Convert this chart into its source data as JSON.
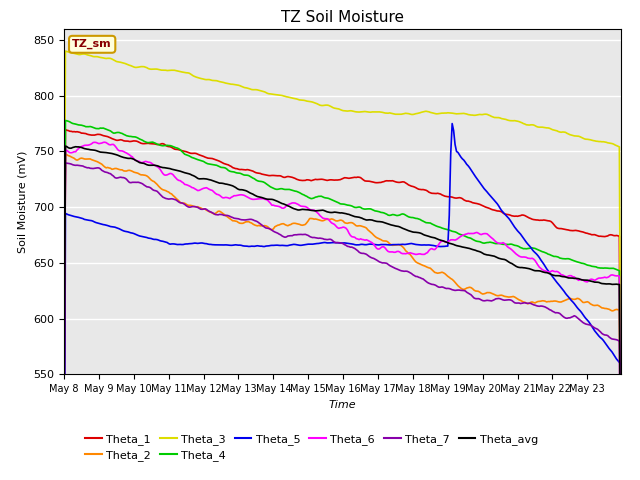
{
  "title": "TZ Soil Moisture",
  "xlabel": "Time",
  "ylabel": "Soil Moisture (mV)",
  "ylim": [
    550,
    860
  ],
  "background_color": "#e8e8e8",
  "legend_box_color": "#ffffdd",
  "legend_box_edge": "#cc9900",
  "legend_label_color": "#880000",
  "legend_label": "TZ_sm",
  "tick_labels": [
    "May 8",
    "May 9",
    "May 10",
    "May 11",
    "May 12",
    "May 13",
    "May 14",
    "May 15",
    "May 16",
    "May 17",
    "May 18",
    "May 19",
    "May 20",
    "May 21",
    "May 22",
    "May 23"
  ],
  "series_order": [
    "Theta_1",
    "Theta_2",
    "Theta_3",
    "Theta_4",
    "Theta_5",
    "Theta_6",
    "Theta_7",
    "Theta_avg"
  ],
  "legend_row1": [
    "Theta_1",
    "Theta_2",
    "Theta_3",
    "Theta_4",
    "Theta_5",
    "Theta_6"
  ],
  "legend_row2": [
    "Theta_7",
    "Theta_avg"
  ],
  "series": {
    "Theta_1": {
      "color": "#dd0000"
    },
    "Theta_2": {
      "color": "#ff8800"
    },
    "Theta_3": {
      "color": "#dddd00"
    },
    "Theta_4": {
      "color": "#00cc00"
    },
    "Theta_5": {
      "color": "#0000ee"
    },
    "Theta_6": {
      "color": "#ff00ff"
    },
    "Theta_7": {
      "color": "#8800aa"
    },
    "Theta_avg": {
      "color": "#000000"
    }
  },
  "n_days": 16,
  "points_per_day": 24
}
